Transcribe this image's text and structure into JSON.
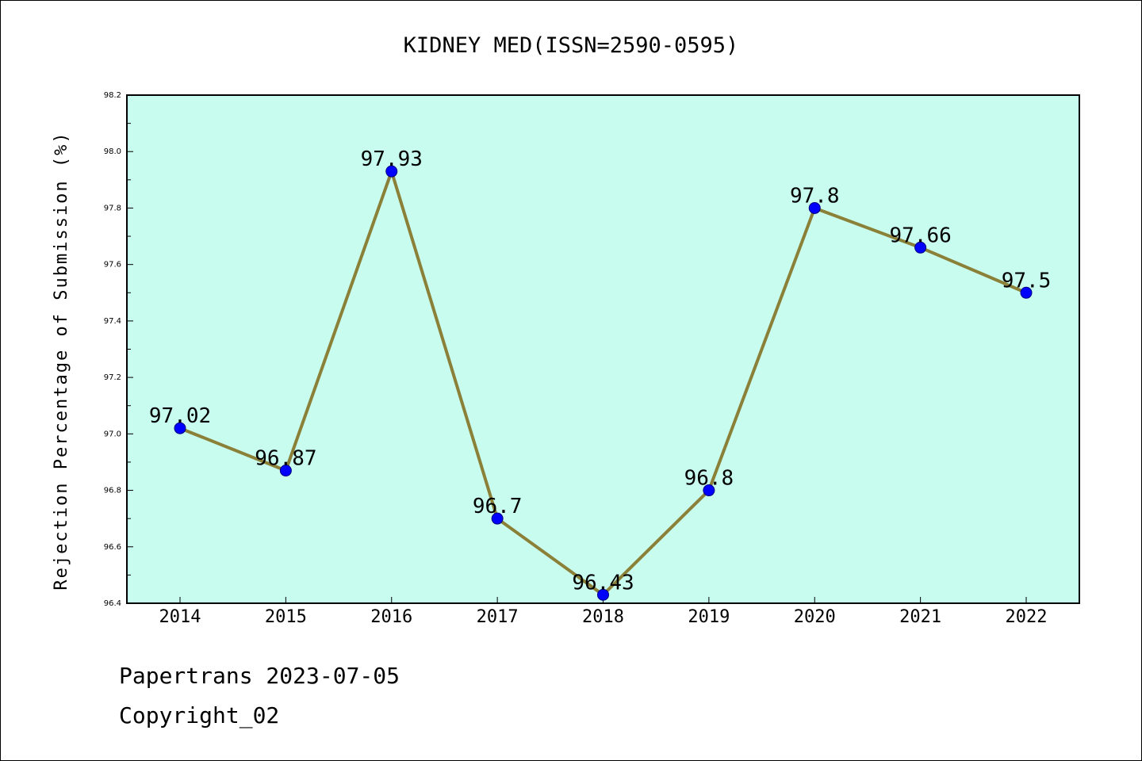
{
  "chart_data": {
    "type": "line",
    "title": "KIDNEY MED(ISSN=2590-0595)",
    "xlabel": "",
    "ylabel": "Rejection Percentage of Submission (%)",
    "categories": [
      "2014",
      "2015",
      "2016",
      "2017",
      "2018",
      "2019",
      "2020",
      "2021",
      "2022"
    ],
    "series": [
      {
        "values": [
          97.02,
          96.87,
          97.93,
          96.7,
          96.43,
          96.8,
          97.8,
          97.66,
          97.5
        ]
      }
    ],
    "data_labels": [
      "97.02",
      "96.87",
      "97.93",
      "96.7",
      "96.43",
      "96.8",
      "97.8",
      "97.66",
      "97.5"
    ],
    "ylim": [
      96.4,
      98.2
    ],
    "yticks": [
      "96.4",
      "96.6",
      "96.8",
      "97.0",
      "97.2",
      "97.4",
      "97.6",
      "97.8",
      "98.0",
      "98.2"
    ],
    "grid": false,
    "legend": "none",
    "colors": {
      "plot_background": "#c8fcee",
      "line": "#8b8038",
      "marker": "#0000ff",
      "axes": "#000000"
    }
  },
  "footer": {
    "line1": "Papertrans 2023-07-05",
    "line2": "Copyright_02"
  }
}
